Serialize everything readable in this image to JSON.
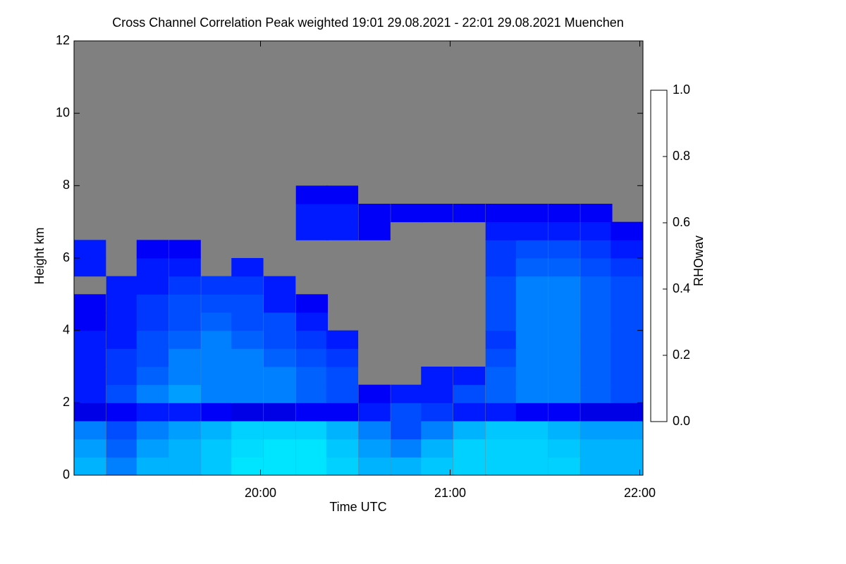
{
  "chart_data": {
    "type": "heatmap",
    "title": "Cross Channel Correlation Peak weighted   19:01 29.08.2021 - 22:01 29.08.2021 Muenchen",
    "xlabel": "Time UTC",
    "ylabel": "Height km",
    "colorbar_label": "RHOwav",
    "xlim": [
      19.0167,
      22.0167
    ],
    "xticks": [
      {
        "value": 20,
        "label": "20:00"
      },
      {
        "value": 21,
        "label": "21:00"
      },
      {
        "value": 22,
        "label": "22:00"
      }
    ],
    "ylim": [
      0,
      12
    ],
    "yticks": [
      0,
      2,
      4,
      6,
      8,
      10,
      12
    ],
    "zlim": [
      0,
      1
    ],
    "zticks": [
      {
        "value": 0,
        "label": "0.0"
      },
      {
        "value": 0.2,
        "label": "0.2"
      },
      {
        "value": 0.4,
        "label": "0.4"
      },
      {
        "value": 0.6,
        "label": "0.6"
      },
      {
        "value": 0.8,
        "label": "0.8"
      },
      {
        "value": 1,
        "label": "1.0"
      }
    ],
    "colormap": "jet",
    "nodata_color": "#808080",
    "x": [
      19.1,
      19.27,
      19.43,
      19.6,
      19.77,
      19.93,
      20.1,
      20.27,
      20.43,
      20.6,
      20.77,
      20.93,
      21.1,
      21.27,
      21.43,
      21.6,
      21.77,
      21.93
    ],
    "y": [
      0.25,
      0.75,
      1.25,
      1.75,
      2.25,
      2.75,
      3.25,
      3.75,
      4.25,
      4.75,
      5.25,
      5.75,
      6.25,
      6.75,
      7.25,
      7.75
    ],
    "z": [
      [
        0.3,
        0.25,
        0.3,
        0.3,
        0.32,
        0.35,
        0.35,
        0.35,
        0.33,
        0.3,
        0.3,
        0.32,
        0.33,
        0.33,
        0.33,
        0.33,
        0.3,
        0.3
      ],
      [
        0.28,
        0.22,
        0.28,
        0.3,
        0.32,
        0.34,
        0.35,
        0.35,
        0.32,
        0.28,
        0.25,
        0.3,
        0.33,
        0.33,
        0.33,
        0.32,
        0.3,
        0.3
      ],
      [
        0.25,
        0.2,
        0.25,
        0.28,
        0.3,
        0.33,
        0.33,
        0.33,
        0.3,
        0.25,
        0.2,
        0.25,
        0.3,
        0.32,
        0.32,
        0.3,
        0.28,
        0.28
      ],
      [
        0.1,
        0.12,
        0.15,
        0.15,
        0.12,
        0.1,
        0.1,
        0.12,
        0.12,
        0.15,
        0.2,
        0.18,
        0.15,
        0.15,
        0.12,
        0.12,
        0.1,
        0.1
      ],
      [
        0.15,
        0.2,
        0.25,
        0.28,
        0.25,
        0.25,
        0.25,
        0.22,
        0.2,
        0.12,
        0.15,
        0.15,
        0.2,
        0.22,
        0.25,
        0.25,
        0.22,
        0.2
      ],
      [
        0.15,
        0.18,
        0.22,
        0.25,
        0.25,
        0.25,
        0.25,
        0.22,
        0.2,
        null,
        null,
        0.15,
        0.15,
        0.22,
        0.25,
        0.25,
        0.22,
        0.2
      ],
      [
        0.15,
        0.18,
        0.2,
        0.25,
        0.25,
        0.25,
        0.22,
        0.2,
        0.18,
        null,
        null,
        null,
        null,
        0.2,
        0.25,
        0.25,
        0.22,
        0.2
      ],
      [
        0.15,
        0.15,
        0.2,
        0.22,
        0.25,
        0.22,
        0.2,
        0.18,
        0.15,
        null,
        null,
        null,
        null,
        0.18,
        0.25,
        0.25,
        0.22,
        0.2
      ],
      [
        0.12,
        0.15,
        0.18,
        0.2,
        0.22,
        0.2,
        0.2,
        0.15,
        null,
        null,
        null,
        null,
        null,
        0.2,
        0.25,
        0.25,
        0.22,
        0.2
      ],
      [
        0.12,
        0.15,
        0.18,
        0.2,
        0.2,
        0.2,
        0.15,
        0.12,
        null,
        null,
        null,
        null,
        null,
        0.2,
        0.25,
        0.25,
        0.22,
        0.2
      ],
      [
        null,
        0.15,
        0.15,
        0.18,
        0.18,
        0.18,
        0.15,
        null,
        null,
        null,
        null,
        null,
        null,
        0.2,
        0.25,
        0.25,
        0.22,
        0.2
      ],
      [
        0.15,
        null,
        0.15,
        0.15,
        null,
        0.15,
        null,
        null,
        null,
        null,
        null,
        null,
        null,
        0.18,
        0.22,
        0.22,
        0.2,
        0.18
      ],
      [
        0.15,
        null,
        0.12,
        0.12,
        null,
        null,
        null,
        null,
        null,
        null,
        null,
        null,
        null,
        0.18,
        0.2,
        0.2,
        0.18,
        0.15
      ],
      [
        null,
        null,
        null,
        null,
        null,
        null,
        null,
        0.15,
        0.15,
        0.12,
        null,
        null,
        null,
        0.15,
        0.15,
        0.15,
        0.15,
        0.12
      ],
      [
        null,
        null,
        null,
        null,
        null,
        null,
        null,
        0.15,
        0.15,
        0.12,
        0.12,
        0.12,
        0.12,
        0.12,
        0.12,
        0.12,
        0.12,
        null
      ],
      [
        null,
        null,
        null,
        null,
        null,
        null,
        null,
        0.12,
        0.12,
        null,
        null,
        null,
        null,
        null,
        null,
        null,
        null,
        null
      ]
    ]
  }
}
